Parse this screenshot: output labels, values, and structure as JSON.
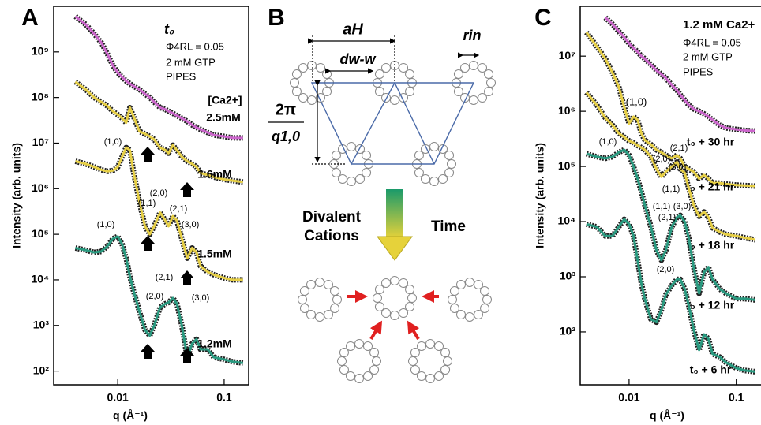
{
  "chart_data": [
    {
      "type": "line",
      "panel_label": "A",
      "x_label": "q (Å⁻¹)",
      "y_label": "Intensity (arb. units)",
      "xscale": "log",
      "yscale": "log",
      "xlim": [
        0.0025,
        0.17
      ],
      "ylim": [
        50,
        10000000000
      ],
      "xticks": [
        0.01,
        0.1
      ],
      "yticks": [
        {
          "value": 100,
          "label": "10²"
        },
        {
          "value": 1000,
          "label": "10³"
        },
        {
          "value": 10000,
          "label": "10⁴"
        },
        {
          "value": 100000,
          "label": "10⁵"
        },
        {
          "value": 1000000,
          "label": "10⁶"
        },
        {
          "value": 10000000,
          "label": "10⁷"
        },
        {
          "value": 100000000,
          "label": "10⁸"
        },
        {
          "value": 1000000000,
          "label": "10⁹"
        }
      ],
      "x": [
        0.004,
        0.005,
        0.006,
        0.007,
        0.008,
        0.009,
        0.01,
        0.011,
        0.012,
        0.013,
        0.014,
        0.016,
        0.018,
        0.02,
        0.022,
        0.025,
        0.028,
        0.03,
        0.033,
        0.036,
        0.04,
        0.045,
        0.05,
        0.055,
        0.06,
        0.07,
        0.08,
        0.1,
        0.12,
        0.15
      ],
      "series": [
        {
          "name": "2.5mM",
          "color": "#cc66cc",
          "values": [
            6000000000.0,
            4000000000.0,
            2500000000.0,
            1600000000.0,
            900000000.0,
            500000000.0,
            350000000.0,
            280000000.0,
            230000000.0,
            200000000.0,
            180000000.0,
            150000000.0,
            120000000.0,
            100000000.0,
            80000000.0,
            60000000.0,
            55000000.0,
            50000000.0,
            45000000.0,
            40000000.0,
            35000000.0,
            30000000.0,
            25000000.0,
            22000000.0,
            20000000.0,
            17000000.0,
            15000000.0,
            14000000.0,
            13000000.0,
            13000000.0
          ]
        },
        {
          "name": "1.6mM",
          "color": "#e6cf45",
          "values": [
            220000000.0,
            150000000.0,
            100000000.0,
            80000000.0,
            65000000.0,
            50000000.0,
            42000000.0,
            35000000.0,
            28000000.0,
            60000000.0,
            40000000.0,
            18000000.0,
            16000000.0,
            14000000.0,
            12000000.0,
            8000000.0,
            7000000.0,
            6000000.0,
            9000000.0,
            7000000.0,
            5000000.0,
            4000000.0,
            3500000.0,
            3000000.0,
            2200000.0,
            2000000.0,
            1800000.0,
            1600000.0,
            1500000.0,
            1400000.0
          ]
        },
        {
          "name": "1.5mM",
          "color": "#e6cf45",
          "values": [
            4000000.0,
            3500000.0,
            3000000.0,
            2600000.0,
            2400000.0,
            2500000.0,
            3000000.0,
            5000000.0,
            8000000.0,
            7000000.0,
            2500000.0,
            500000.0,
            150000.0,
            100000.0,
            150000.0,
            300000.0,
            200000.0,
            150000.0,
            250000.0,
            200000.0,
            80000.0,
            30000.0,
            50000.0,
            40000.0,
            20000.0,
            15000.0,
            13000.0,
            11000.0,
            10000.0,
            10000.0
          ]
        },
        {
          "name": "1.2mM",
          "color": "#2a9a80",
          "values": [
            50000.0,
            45000.0,
            40000.0,
            42000.0,
            55000.0,
            80000.0,
            90000.0,
            60000.0,
            30000.0,
            12000.0,
            6000.0,
            2000.0,
            800.0,
            600.0,
            1000.0,
            2500.0,
            3000.0,
            3200.0,
            4000.0,
            3000.0,
            1000.0,
            200.0,
            400.0,
            500.0,
            300.0,
            300.0,
            200.0,
            180.0,
            160.0,
            150.0
          ]
        }
      ],
      "annotations": [
        "t₀",
        "Φ4RL = 0.05",
        "2 mM GTP",
        "PIPES",
        "[Ca2+]",
        "(1,0)",
        "(2,0)",
        "(1,1)",
        "(2,1)",
        "(3,0)",
        "(1,0)",
        "(2,0)",
        "(2,1)",
        "(3,0)"
      ]
    },
    {
      "type": "line",
      "panel_label": "C",
      "x_label": "q (Å⁻¹)",
      "y_label": "Intensity (arb. units)",
      "xscale": "log",
      "yscale": "log",
      "xlim": [
        0.0035,
        0.17
      ],
      "ylim": [
        11,
        80000000
      ],
      "xticks": [
        0.01,
        0.1
      ],
      "yticks": [
        {
          "value": 100,
          "label": "10²"
        },
        {
          "value": 1000,
          "label": "10³"
        },
        {
          "value": 10000,
          "label": "10⁴"
        },
        {
          "value": 100000,
          "label": "10⁵"
        },
        {
          "value": 1000000,
          "label": "10⁶"
        },
        {
          "value": 10000000,
          "label": "10⁷"
        }
      ],
      "x": [
        0.004,
        0.005,
        0.006,
        0.007,
        0.008,
        0.009,
        0.01,
        0.011,
        0.012,
        0.013,
        0.014,
        0.016,
        0.018,
        0.02,
        0.022,
        0.025,
        0.028,
        0.03,
        0.033,
        0.036,
        0.04,
        0.045,
        0.05,
        0.055,
        0.06,
        0.07,
        0.08,
        0.1,
        0.12,
        0.15
      ],
      "series": [
        {
          "name": "t₀ + 30 hr",
          "color": "#cc66cc",
          "values": [
            null,
            null,
            50000000.0,
            38000000.0,
            28000000.0,
            22000000.0,
            17000000.0,
            14000000.0,
            12000000.0,
            10000000.0,
            9000000.0,
            7000000.0,
            5500000.0,
            4700000.0,
            4000000.0,
            3000000.0,
            2400000.0,
            2000000.0,
            1600000.0,
            1300000.0,
            1100000.0,
            1000000.0,
            900000.0,
            800000.0,
            700000.0,
            560000.0,
            500000.0,
            470000.0,
            450000.0,
            440000.0
          ]
        },
        {
          "name": "t₀ + 21 hr",
          "color": "#e6cf45",
          "values": [
            27000000.0,
            15000000.0,
            9000000.0,
            5000000.0,
            2800000.0,
            1200000.0,
            600000.0,
            800000.0,
            700000.0,
            400000.0,
            300000.0,
            250000.0,
            200000.0,
            180000.0,
            160000.0,
            140000.0,
            160000.0,
            140000.0,
            100000.0,
            90000.0,
            80000.0,
            60000.0,
            70000.0,
            60000.0,
            50000.0,
            50000.0,
            48000.0,
            46000.0,
            45000.0,
            44000.0
          ]
        },
        {
          "name": "t₀ + 18 hr",
          "color": "#e6cf45",
          "values": [
            2200000.0,
            1300000.0,
            760000.0,
            560000.0,
            400000.0,
            340000.0,
            290000.0,
            270000.0,
            240000.0,
            220000.0,
            200000.0,
            150000.0,
            90000.0,
            65000.0,
            80000.0,
            100000.0,
            120000.0,
            90000.0,
            77000.0,
            40000.0,
            20000.0,
            12500.0,
            15000.0,
            12000.0,
            7700.0,
            6500.0,
            5900.0,
            5500.0,
            5100.0,
            4700.0
          ]
        },
        {
          "name": "t₀ + 12 hr",
          "color": "#2a9a80",
          "values": [
            170000.0,
            150000.0,
            140000.0,
            150000.0,
            180000.0,
            200000.0,
            160000.0,
            100000.0,
            60000.0,
            35000.0,
            20000.0,
            8000.0,
            3000.0,
            2000.0,
            3000.0,
            8000.0,
            12000.0,
            13000.0,
            10000.0,
            5000.0,
            1500.0,
            500.0,
            1200.0,
            1500.0,
            900.0,
            600.0,
            500.0,
            400.0,
            400.0,
            380.0
          ]
        },
        {
          "name": "t₀ + 6 hr",
          "color": "#2a9a80",
          "values": [
            9000.0,
            8000.0,
            5500.0,
            5500.0,
            8000.0,
            11000.0,
            9000.0,
            5500.0,
            2000.0,
            770.0,
            400.0,
            170.0,
            150.0,
            250.0,
            470.0,
            700.0,
            900.0,
            900.0,
            600.0,
            300.0,
            110.0,
            47,
            90,
            75,
            40,
            35,
            28,
            22,
            20,
            19
          ]
        }
      ],
      "annotations": [
        "1.2 mM Ca2+",
        "Φ4RL = 0.05",
        "2 mM GTP",
        "PIPES",
        "(1,0)",
        "(1,0)",
        "(2,1)",
        "(2,0)",
        "(3,0)",
        "(1,1)",
        "(1,1)",
        "(3,0)",
        "(2,1)",
        "(2,0)"
      ]
    }
  ],
  "diagram": {
    "panel_label": "B",
    "lattice_constant": "aH",
    "wall_distance": "dw-w",
    "inner_radius": "rin",
    "period_numerator": "2π",
    "period_denominator": "q1,0",
    "cause": [
      "Divalent",
      "Cations"
    ],
    "time": "Time"
  }
}
